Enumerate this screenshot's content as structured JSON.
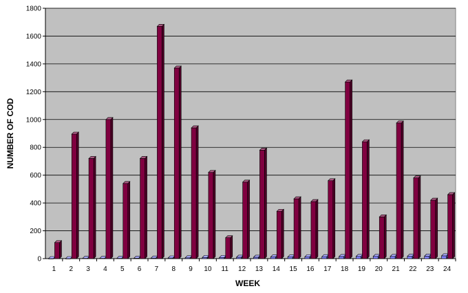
{
  "chart_data": {
    "type": "bar",
    "title": "",
    "xlabel": "WEEK",
    "ylabel": "NUMBER OF COD",
    "ylim": [
      0,
      1800
    ],
    "yticks": [
      0,
      200,
      400,
      600,
      800,
      1000,
      1200,
      1400,
      1600,
      1800
    ],
    "grid": true,
    "style": "3d-columns",
    "categories": [
      "1",
      "2",
      "3",
      "4",
      "5",
      "6",
      "7",
      "8",
      "9",
      "10",
      "11",
      "12",
      "13",
      "14",
      "15",
      "16",
      "17",
      "18",
      "19",
      "20",
      "21",
      "22",
      "23",
      "24"
    ],
    "series": [
      {
        "color": "#8080ff",
        "values": [
          0,
          0,
          2,
          2,
          2,
          3,
          4,
          5,
          6,
          8,
          8,
          10,
          10,
          12,
          12,
          13,
          14,
          15,
          16,
          16,
          16,
          17,
          18,
          20
        ]
      },
      {
        "color": "#800040",
        "values": [
          115,
          895,
          720,
          1000,
          540,
          720,
          1670,
          1370,
          940,
          620,
          150,
          550,
          780,
          340,
          430,
          410,
          560,
          1270,
          840,
          300,
          975,
          580,
          420,
          460
        ]
      }
    ]
  }
}
